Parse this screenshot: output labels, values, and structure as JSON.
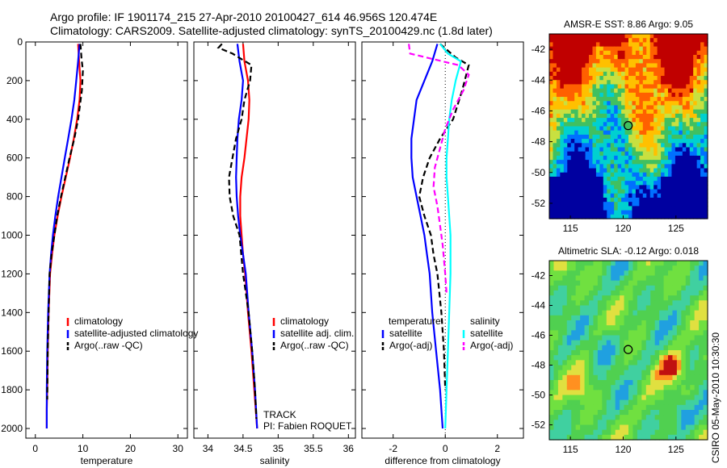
{
  "title_lines": [
    "Argo profile: IF 1901174_215 27-Apr-2010 20100427_614 46.956S 120.474E",
    "Climatology: CARS2009. Satellite-adjusted climatology: synTS_20100429.nc (1.8d later)"
  ],
  "side_note": "CSIRO 05-May-2010 10:30:30",
  "colors": {
    "climatology": "#ff0000",
    "satellite": "#0000ff",
    "argo": "#000000",
    "salinity_satellite": "#00ffff",
    "salinity_argo": "#ff00ff"
  },
  "chart_data": [
    {
      "type": "line",
      "xlabel": "temperature",
      "ylabel": "",
      "xlim": [
        -2,
        32
      ],
      "ylim": [
        2050,
        0
      ],
      "xticks": [
        "0",
        "10",
        "20",
        "30"
      ],
      "xtick_values": [
        0,
        10,
        20,
        30
      ],
      "yticks": [
        "0",
        "200",
        "400",
        "600",
        "800",
        "1000",
        "1200",
        "1400",
        "1600",
        "1800",
        "2000"
      ],
      "ytick_values": [
        0,
        200,
        400,
        600,
        800,
        1000,
        1200,
        1400,
        1600,
        1800,
        2000
      ],
      "legend": {
        "placement": "lower-center",
        "entries": [
          {
            "label": "climatology",
            "color": "#ff0000",
            "style": "solid"
          },
          {
            "label": "satellite-adjusted climatology",
            "color": "#0000ff",
            "style": "solid"
          },
          {
            "label": "Argo(..raw -QC)",
            "color": "#000000",
            "style": "dashed"
          }
        ]
      },
      "series": [
        {
          "color": "#ff0000",
          "style": "solid",
          "x": [
            9.0,
            9.2,
            9.5,
            9.3,
            8.8,
            8.1,
            7.3,
            6.4,
            5.5,
            4.7,
            4.0,
            3.5,
            3.1,
            2.8,
            2.6,
            2.5,
            2.4,
            2.4
          ],
          "y": [
            10,
            100,
            200,
            300,
            400,
            500,
            600,
            700,
            800,
            900,
            1000,
            1100,
            1200,
            1400,
            1600,
            1800,
            1900,
            2000
          ]
        },
        {
          "color": "#0000ff",
          "style": "solid",
          "x": [
            9.3,
            9.0,
            8.6,
            8.2,
            7.6,
            6.9,
            6.2,
            5.5,
            4.8,
            4.2,
            3.7,
            3.3,
            3.0,
            2.7,
            2.5,
            2.4,
            2.4
          ],
          "y": [
            10,
            100,
            200,
            300,
            400,
            500,
            600,
            700,
            800,
            900,
            1000,
            1100,
            1200,
            1400,
            1600,
            1800,
            2000
          ]
        },
        {
          "color": "#000000",
          "style": "dashed",
          "x": [
            9.5,
            9.7,
            10.0,
            9.8,
            9.0,
            8.2,
            7.2,
            6.3,
            5.4,
            4.6,
            4.0,
            3.4,
            3.0,
            2.8,
            2.6,
            2.5
          ],
          "y": [
            10,
            80,
            150,
            250,
            400,
            500,
            600,
            700,
            800,
            900,
            1000,
            1100,
            1200,
            1400,
            1600,
            1850
          ]
        }
      ]
    },
    {
      "type": "line",
      "xlabel": "salinity",
      "ylabel": "",
      "xlim": [
        33.8,
        36.1
      ],
      "ylim": [
        2050,
        0
      ],
      "xticks": [
        "34",
        "34.5",
        "35",
        "35.5",
        "36"
      ],
      "xtick_values": [
        34,
        34.5,
        35,
        35.5,
        36
      ],
      "annotations": [
        "TRACK",
        "PI: Fabien ROQUET"
      ],
      "legend": {
        "placement": "lower-center",
        "entries": [
          {
            "label": "climatology",
            "color": "#ff0000",
            "style": "solid"
          },
          {
            "label": "satellite adj. clim.",
            "color": "#0000ff",
            "style": "solid"
          },
          {
            "label": "Argo(..raw -QC)",
            "color": "#000000",
            "style": "dashed"
          }
        ]
      },
      "series": [
        {
          "color": "#ff0000",
          "style": "solid",
          "x": [
            34.5,
            34.52,
            34.57,
            34.59,
            34.58,
            34.55,
            34.52,
            34.48,
            34.46,
            34.46,
            34.48,
            34.5,
            34.53,
            34.57,
            34.62,
            34.66,
            34.7
          ],
          "y": [
            10,
            100,
            200,
            300,
            400,
            500,
            600,
            700,
            800,
            900,
            1000,
            1100,
            1200,
            1400,
            1600,
            1800,
            2000
          ]
        },
        {
          "color": "#0000ff",
          "style": "solid",
          "x": [
            34.42,
            34.45,
            34.5,
            34.48,
            34.44,
            34.42,
            34.41,
            34.4,
            34.41,
            34.43,
            34.46,
            34.5,
            34.54,
            34.58,
            34.63,
            34.67,
            34.7
          ],
          "y": [
            10,
            100,
            200,
            300,
            400,
            500,
            600,
            700,
            800,
            900,
            1000,
            1100,
            1200,
            1400,
            1600,
            1800,
            2000
          ]
        },
        {
          "color": "#000000",
          "style": "dashed",
          "x": [
            34.2,
            34.15,
            34.35,
            34.62,
            34.6,
            34.52,
            34.48,
            34.4,
            34.35,
            34.3,
            34.31,
            34.36,
            34.45,
            34.5,
            34.58,
            34.63,
            34.67,
            34.69
          ],
          "y": [
            10,
            30,
            60,
            120,
            200,
            300,
            400,
            500,
            600,
            700,
            800,
            900,
            1000,
            1200,
            1400,
            1600,
            1800,
            1950
          ]
        }
      ]
    },
    {
      "type": "line",
      "xlabel": "difference from climatology",
      "ylabel": "",
      "xlim": [
        -3.2,
        3.0
      ],
      "ylim": [
        2050,
        0
      ],
      "xticks": [
        "-2",
        "0",
        "2"
      ],
      "xtick_values": [
        -2,
        0,
        2
      ],
      "legend": {
        "placement": "lower-center",
        "columns": [
          {
            "heading": "temperature",
            "entries": [
              {
                "label": "satellite",
                "color": "#0000ff",
                "style": "solid"
              },
              {
                "label": "Argo(-adj)",
                "color": "#000000",
                "style": "dashed"
              }
            ]
          },
          {
            "heading": "salinity",
            "entries": [
              {
                "label": "satellite",
                "color": "#00ffff",
                "style": "solid"
              },
              {
                "label": "Argo(-adj)",
                "color": "#ff00ff",
                "style": "dashed"
              }
            ]
          }
        ]
      },
      "series": [
        {
          "color": "#0000ff",
          "style": "solid",
          "name": "temperature satellite",
          "x": [
            -0.3,
            -0.5,
            -0.8,
            -1.1,
            -1.2,
            -1.3,
            -1.3,
            -1.25,
            -1.1,
            -0.95,
            -0.8,
            -0.7,
            -0.6,
            -0.5,
            -0.35,
            -0.2,
            -0.1
          ],
          "y": [
            10,
            100,
            200,
            300,
            400,
            500,
            600,
            700,
            800,
            900,
            1000,
            1100,
            1200,
            1400,
            1600,
            1800,
            2000
          ]
        },
        {
          "color": "#000000",
          "style": "dashed",
          "name": "temperature Argo",
          "x": [
            -0.2,
            0.4,
            0.9,
            0.65,
            0.3,
            -0.2,
            -0.6,
            -0.85,
            -1.0,
            -0.8,
            -0.55,
            -0.45,
            -0.3,
            -0.15,
            -0.05,
            0.0
          ],
          "y": [
            10,
            80,
            120,
            250,
            400,
            500,
            600,
            700,
            800,
            900,
            1000,
            1100,
            1200,
            1400,
            1600,
            1800
          ]
        },
        {
          "color": "#00ffff",
          "style": "solid",
          "name": "salinity satellite",
          "x": [
            -0.2,
            0.1,
            0.6,
            0.4,
            0.25,
            0.15,
            0.1,
            0.05,
            0.05,
            0.1,
            0.15,
            0.2,
            0.2,
            0.15,
            0.1,
            0.05,
            0.0
          ],
          "y": [
            10,
            60,
            100,
            200,
            300,
            400,
            500,
            600,
            700,
            800,
            900,
            1000,
            1200,
            1400,
            1600,
            1800,
            2000
          ]
        },
        {
          "color": "#ff00ff",
          "style": "dashed",
          "name": "salinity Argo",
          "x": [
            -1.4,
            -1.35,
            0.5,
            0.9,
            0.7,
            0.3,
            0.0,
            -0.2,
            -0.4,
            -0.45,
            -0.3,
            -0.2,
            -0.1,
            0.0,
            0.05
          ],
          "y": [
            10,
            60,
            120,
            170,
            250,
            350,
            450,
            550,
            650,
            750,
            850,
            950,
            1050,
            1200,
            1300
          ]
        }
      ]
    },
    {
      "type": "heatmap",
      "title": "AMSR-E SST: 8.86 Argo: 9.05",
      "xlabel": "",
      "ylabel": "",
      "xlim": [
        113,
        128
      ],
      "ylim": [
        -53,
        -41
      ],
      "xticks": [
        "115",
        "120",
        "125"
      ],
      "xtick_values": [
        115,
        120,
        125
      ],
      "yticks": [
        "-42",
        "-44",
        "-46",
        "-48",
        "-50",
        "-52"
      ],
      "ytick_values": [
        -42,
        -44,
        -46,
        -48,
        -50,
        -52
      ],
      "marker": {
        "lon": 120.474,
        "lat": -46.956,
        "shape": "circle"
      },
      "colormap": [
        "#0000a0",
        "#0070ff",
        "#00d0d0",
        "#40c060",
        "#c8e040",
        "#ffc000",
        "#ff6000",
        "#c00000"
      ]
    },
    {
      "type": "heatmap",
      "title": "Altimetric SLA: -0.12 Argo: 0.018",
      "xlabel": "",
      "ylabel": "",
      "xlim": [
        113,
        128
      ],
      "ylim": [
        -53,
        -41
      ],
      "xticks": [
        "115",
        "120",
        "125"
      ],
      "xtick_values": [
        115,
        120,
        125
      ],
      "yticks": [
        "-42",
        "-44",
        "-46",
        "-48",
        "-50",
        "-52"
      ],
      "ytick_values": [
        -42,
        -44,
        -46,
        -48,
        -50,
        -52
      ],
      "marker": {
        "lon": 120.474,
        "lat": -46.956,
        "shape": "circle"
      },
      "colormap": [
        "#2040c0",
        "#20a0e0",
        "#40d0a0",
        "#50d050",
        "#70e040",
        "#e0e040",
        "#ff9020",
        "#c01010"
      ]
    }
  ]
}
